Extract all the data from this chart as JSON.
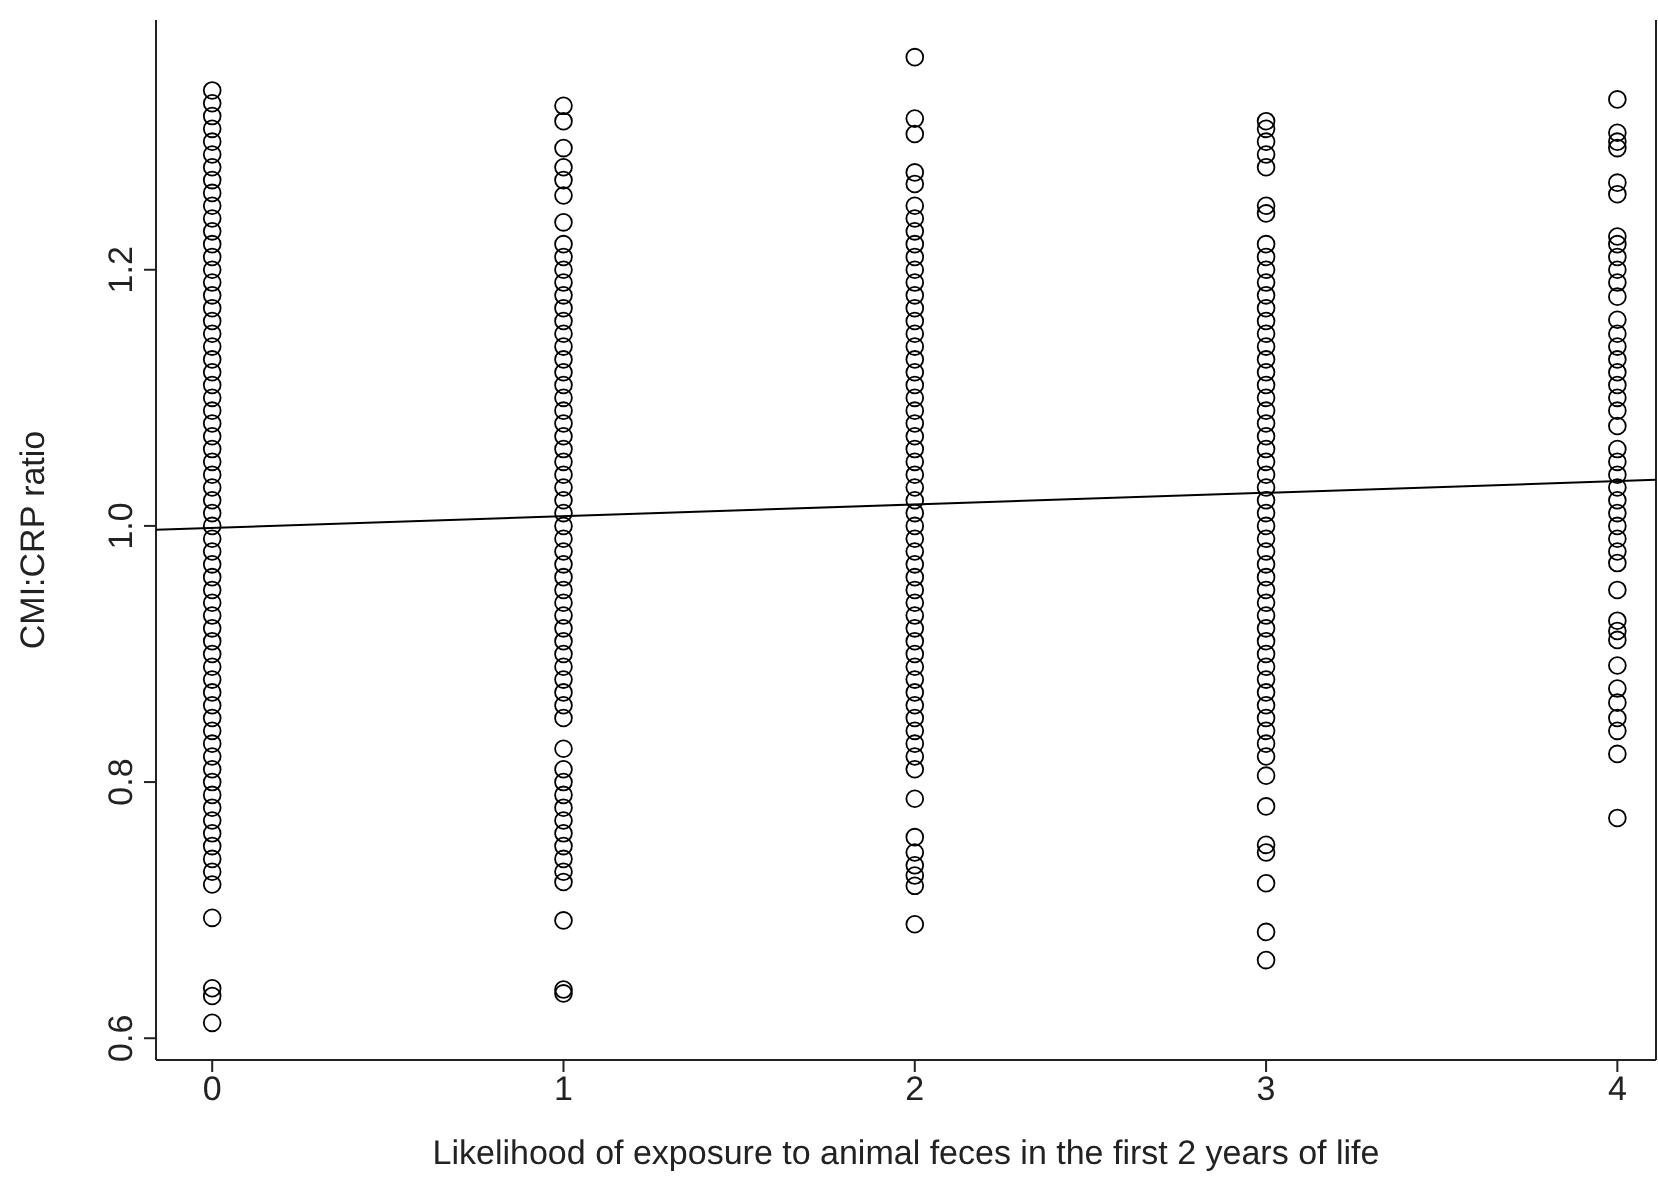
{
  "chart_data": {
    "type": "scatter",
    "xlabel": "Likelihood of exposure to animal feces in the first 2 years of life",
    "ylabel": "CMI:CRP ratio",
    "xlim": [
      -0.16,
      4.11
    ],
    "xticks": [
      0,
      1,
      2,
      3,
      4
    ],
    "ylim": [
      0.583,
      1.395
    ],
    "yticks": [
      0.6,
      0.8,
      {
        "value": 1,
        "label": "1.0"
      },
      1.2
    ],
    "marker": "circle",
    "series": [
      {
        "color": "#000000",
        "x": [
          0,
          0,
          0,
          0,
          0,
          0,
          0,
          0,
          0,
          0,
          0,
          0,
          0,
          0,
          0,
          0,
          0,
          0,
          0,
          0,
          0,
          0,
          0,
          0,
          0,
          0,
          0,
          0,
          0,
          0,
          0,
          0,
          0,
          0,
          0,
          0,
          0,
          0,
          0,
          0,
          0,
          0,
          0,
          0,
          0,
          0,
          0,
          0,
          0,
          0,
          0,
          0,
          0,
          0,
          0,
          0,
          0,
          0,
          0,
          0,
          0,
          0,
          0,
          0,
          0,
          0,
          0
        ],
        "values": [
          1.34,
          1.33,
          1.32,
          1.31,
          1.3,
          1.29,
          1.28,
          1.27,
          1.26,
          1.25,
          1.24,
          1.23,
          1.22,
          1.21,
          1.2,
          1.19,
          1.18,
          1.17,
          1.16,
          1.15,
          1.14,
          1.13,
          1.12,
          1.11,
          1.1,
          1.09,
          1.08,
          1.07,
          1.06,
          1.05,
          1.04,
          1.03,
          1.02,
          1.01,
          1,
          0.99,
          0.98,
          0.97,
          0.96,
          0.95,
          0.94,
          0.93,
          0.92,
          0.91,
          0.9,
          0.89,
          0.88,
          0.87,
          0.86,
          0.85,
          0.84,
          0.83,
          0.82,
          0.81,
          0.8,
          0.79,
          0.78,
          0.77,
          0.76,
          0.75,
          0.74,
          0.73,
          0.72,
          0.694,
          0.639,
          0.633,
          0.612
        ]
      },
      {
        "color": "#000000",
        "x": [
          1,
          1,
          1,
          1,
          1,
          1,
          1,
          1,
          1,
          1,
          1,
          1,
          1,
          1,
          1,
          1,
          1,
          1,
          1,
          1,
          1,
          1,
          1,
          1,
          1,
          1,
          1,
          1,
          1,
          1,
          1,
          1,
          1,
          1,
          1,
          1,
          1,
          1,
          1,
          1,
          1,
          1,
          1,
          1,
          1,
          1,
          1,
          1,
          1,
          1,
          1,
          1,
          1,
          1,
          1,
          1,
          1,
          1,
          1
        ],
        "values": [
          1.328,
          1.316,
          1.295,
          1.28,
          1.27,
          1.258,
          1.237,
          1.22,
          1.21,
          1.2,
          1.19,
          1.18,
          1.17,
          1.16,
          1.15,
          1.14,
          1.13,
          1.12,
          1.11,
          1.1,
          1.09,
          1.08,
          1.07,
          1.06,
          1.05,
          1.04,
          1.03,
          1.02,
          1.01,
          1,
          0.99,
          0.98,
          0.97,
          0.96,
          0.95,
          0.94,
          0.93,
          0.92,
          0.91,
          0.9,
          0.89,
          0.88,
          0.87,
          0.86,
          0.85,
          0.826,
          0.81,
          0.8,
          0.79,
          0.78,
          0.77,
          0.76,
          0.75,
          0.74,
          0.73,
          0.722,
          0.692,
          0.638,
          0.635
        ]
      },
      {
        "color": "#000000",
        "x": [
          2,
          2,
          2,
          2,
          2,
          2,
          2,
          2,
          2,
          2,
          2,
          2,
          2,
          2,
          2,
          2,
          2,
          2,
          2,
          2,
          2,
          2,
          2,
          2,
          2,
          2,
          2,
          2,
          2,
          2,
          2,
          2,
          2,
          2,
          2,
          2,
          2,
          2,
          2,
          2,
          2,
          2,
          2,
          2,
          2,
          2,
          2,
          2,
          2,
          2,
          2,
          2,
          2,
          2,
          2,
          2,
          2
        ],
        "values": [
          1.366,
          1.318,
          1.306,
          1.276,
          1.267,
          1.25,
          1.24,
          1.23,
          1.22,
          1.21,
          1.2,
          1.19,
          1.18,
          1.17,
          1.16,
          1.15,
          1.14,
          1.13,
          1.12,
          1.11,
          1.1,
          1.09,
          1.08,
          1.07,
          1.06,
          1.05,
          1.04,
          1.03,
          1.02,
          1.01,
          1,
          0.99,
          0.98,
          0.97,
          0.96,
          0.95,
          0.94,
          0.93,
          0.92,
          0.91,
          0.9,
          0.89,
          0.88,
          0.87,
          0.86,
          0.85,
          0.84,
          0.83,
          0.82,
          0.81,
          0.787,
          0.757,
          0.745,
          0.735,
          0.727,
          0.719,
          0.689
        ]
      },
      {
        "color": "#000000",
        "x": [
          3,
          3,
          3,
          3,
          3,
          3,
          3,
          3,
          3,
          3,
          3,
          3,
          3,
          3,
          3,
          3,
          3,
          3,
          3,
          3,
          3,
          3,
          3,
          3,
          3,
          3,
          3,
          3,
          3,
          3,
          3,
          3,
          3,
          3,
          3,
          3,
          3,
          3,
          3,
          3,
          3,
          3,
          3,
          3,
          3,
          3,
          3,
          3,
          3,
          3,
          3,
          3,
          3,
          3,
          3
        ],
        "values": [
          1.316,
          1.31,
          1.3,
          1.29,
          1.28,
          1.25,
          1.244,
          1.22,
          1.21,
          1.2,
          1.19,
          1.18,
          1.17,
          1.16,
          1.15,
          1.14,
          1.13,
          1.12,
          1.11,
          1.1,
          1.09,
          1.08,
          1.07,
          1.06,
          1.05,
          1.04,
          1.03,
          1.02,
          1.01,
          1,
          0.99,
          0.98,
          0.97,
          0.96,
          0.95,
          0.94,
          0.93,
          0.92,
          0.91,
          0.9,
          0.89,
          0.88,
          0.87,
          0.86,
          0.85,
          0.84,
          0.83,
          0.82,
          0.805,
          0.781,
          0.751,
          0.745,
          0.721,
          0.683,
          0.661
        ]
      },
      {
        "color": "#000000",
        "x": [
          4,
          4,
          4,
          4,
          4,
          4,
          4,
          4,
          4,
          4,
          4,
          4,
          4,
          4,
          4,
          4,
          4,
          4,
          4,
          4,
          4,
          4,
          4,
          4,
          4,
          4,
          4,
          4,
          4,
          4,
          4,
          4,
          4,
          4,
          4,
          4,
          4,
          4,
          4,
          4,
          4,
          4
        ],
        "values": [
          1.333,
          1.307,
          1.3,
          1.295,
          1.268,
          1.259,
          1.226,
          1.22,
          1.21,
          1.2,
          1.19,
          1.179,
          1.161,
          1.15,
          1.14,
          1.13,
          1.12,
          1.11,
          1.1,
          1.09,
          1.078,
          1.06,
          1.05,
          1.04,
          1.03,
          1.02,
          1.01,
          1,
          0.99,
          0.98,
          0.971,
          0.95,
          0.926,
          0.918,
          0.911,
          0.891,
          0.873,
          0.862,
          0.85,
          0.84,
          0.822,
          0.772
        ]
      },
      {
        "type": "line",
        "marker": "none",
        "color": "#000000",
        "x": [
          -0.16,
          4.11
        ],
        "values": [
          0.997,
          1.036
        ]
      }
    ]
  }
}
